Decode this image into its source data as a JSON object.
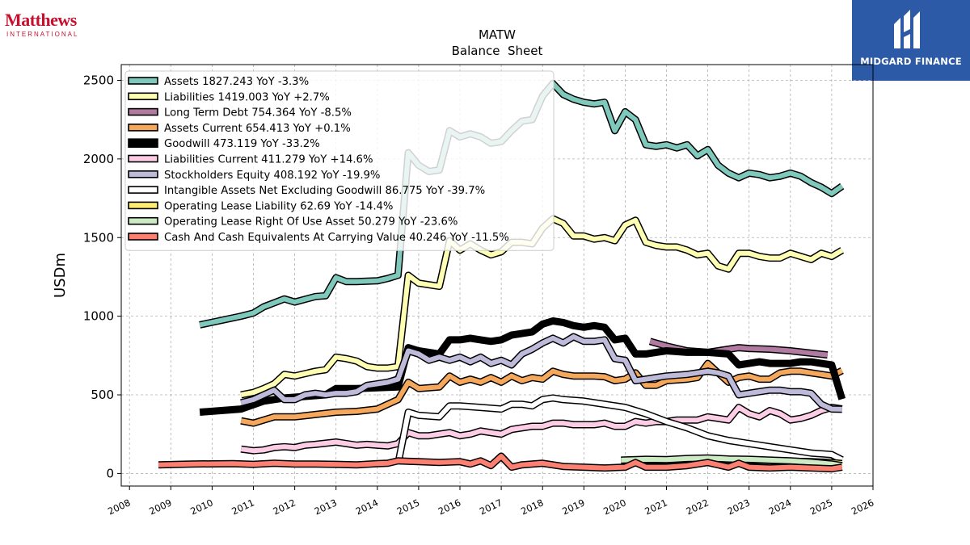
{
  "header": {
    "company_logo_text": "Matthews",
    "company_logo_subtext": "INTERNATIONAL",
    "publisher_logo_text": "MIDGARD FINANCE"
  },
  "chart_data": {
    "type": "line",
    "title": "MATW",
    "subtitle": "Balance  Sheet",
    "xlabel": "",
    "ylabel": "USDm",
    "xlim": [
      2007.8,
      2026.0
    ],
    "ylim": [
      -80,
      2600
    ],
    "x_ticks": [
      "2008",
      "2009",
      "2010",
      "2011",
      "2012",
      "2013",
      "2014",
      "2015",
      "2016",
      "2017",
      "2018",
      "2019",
      "2020",
      "2021",
      "2022",
      "2023",
      "2024",
      "2025",
      "2026"
    ],
    "y_ticks": [
      0,
      500,
      1000,
      1500,
      2000,
      2500
    ],
    "y_tick_labels": [
      "0",
      "500",
      "1000",
      "1500",
      "2000",
      "2500"
    ],
    "grid": true,
    "legend_position": "top-left",
    "series": [
      {
        "name": "Assets",
        "legend": "Assets  1827.243 YoY -3.3%",
        "color": "#7fc8bc",
        "width": 6,
        "x": [
          2009.7,
          2010.7,
          2011.0,
          2011.25,
          2011.75,
          2012.0,
          2012.5,
          2012.75,
          2013.0,
          2013.25,
          2013.5,
          2014.0,
          2014.25,
          2014.5,
          2014.75,
          2015.0,
          2015.25,
          2015.5,
          2015.75,
          2016.0,
          2016.25,
          2016.5,
          2016.75,
          2017.0,
          2017.25,
          2017.5,
          2017.75,
          2018.0,
          2018.25,
          2018.5,
          2018.75,
          2019.0,
          2019.25,
          2019.5,
          2019.75,
          2020.0,
          2020.25,
          2020.5,
          2020.75,
          2021.0,
          2021.25,
          2021.5,
          2021.75,
          2022.0,
          2022.25,
          2022.5,
          2022.75,
          2023.0,
          2023.25,
          2023.5,
          2023.75,
          2024.0,
          2024.25,
          2024.5,
          2024.75,
          2025.0,
          2025.25
        ],
        "y": [
          945,
          1000,
          1020,
          1060,
          1110,
          1090,
          1125,
          1130,
          1245,
          1220,
          1220,
          1225,
          1240,
          1260,
          2040,
          1960,
          1920,
          1930,
          2180,
          2140,
          2160,
          2140,
          2100,
          2110,
          2180,
          2240,
          2250,
          2400,
          2480,
          2410,
          2380,
          2360,
          2350,
          2360,
          2180,
          2300,
          2250,
          2090,
          2080,
          2090,
          2070,
          2090,
          2020,
          2060,
          1960,
          1910,
          1880,
          1910,
          1900,
          1880,
          1890,
          1910,
          1890,
          1850,
          1820,
          1780,
          1827
        ]
      },
      {
        "name": "Liabilities",
        "legend": "Liabilities  1419.003 YoY +2.7%",
        "color": "#ffffb3",
        "width": 6,
        "x": [
          2010.7,
          2011.0,
          2011.25,
          2011.5,
          2011.75,
          2012.0,
          2012.5,
          2012.75,
          2013.0,
          2013.25,
          2013.5,
          2013.75,
          2014.0,
          2014.25,
          2014.5,
          2014.75,
          2015.0,
          2015.25,
          2015.5,
          2015.75,
          2016.0,
          2016.25,
          2016.5,
          2016.75,
          2017.0,
          2017.25,
          2017.5,
          2017.75,
          2018.0,
          2018.25,
          2018.5,
          2018.75,
          2019.0,
          2019.25,
          2019.5,
          2019.75,
          2020.0,
          2020.25,
          2020.5,
          2020.75,
          2021.0,
          2021.25,
          2021.5,
          2021.75,
          2022.0,
          2022.25,
          2022.5,
          2022.75,
          2023.0,
          2023.25,
          2023.5,
          2023.75,
          2024.0,
          2024.25,
          2024.5,
          2024.75,
          2025.0,
          2025.25
        ],
        "y": [
          500,
          515,
          540,
          570,
          630,
          620,
          650,
          660,
          740,
          730,
          715,
          680,
          670,
          670,
          680,
          1260,
          1210,
          1200,
          1190,
          1480,
          1420,
          1460,
          1420,
          1390,
          1410,
          1470,
          1470,
          1460,
          1560,
          1620,
          1590,
          1510,
          1510,
          1490,
          1500,
          1480,
          1580,
          1610,
          1470,
          1450,
          1440,
          1440,
          1420,
          1390,
          1400,
          1320,
          1300,
          1400,
          1400,
          1380,
          1370,
          1370,
          1400,
          1380,
          1360,
          1400,
          1380,
          1419
        ]
      },
      {
        "name": "Long Term Debt",
        "legend": "Long Term Debt  754.364 YoY -8.5%",
        "color": "#b07aa1",
        "width": 6,
        "x": [
          2020.6,
          2021.0,
          2021.5,
          2022.0,
          2022.5,
          2022.75,
          2023.0,
          2023.5,
          2024.0,
          2024.5,
          2024.9
        ],
        "y": [
          840,
          810,
          780,
          770,
          790,
          800,
          795,
          790,
          780,
          765,
          754
        ]
      },
      {
        "name": "Assets Current",
        "legend": "Assets Current  654.413 YoY +0.1%",
        "color": "#f5a85b",
        "width": 6,
        "x": [
          2010.7,
          2011.0,
          2011.5,
          2012.0,
          2012.5,
          2013.0,
          2013.5,
          2014.0,
          2014.5,
          2014.75,
          2015.0,
          2015.5,
          2015.75,
          2016.0,
          2016.25,
          2016.5,
          2016.75,
          2017.0,
          2017.25,
          2017.5,
          2017.75,
          2018.0,
          2018.25,
          2018.5,
          2018.75,
          2019.0,
          2019.25,
          2019.5,
          2019.75,
          2020.0,
          2020.25,
          2020.5,
          2020.75,
          2021.0,
          2021.5,
          2021.75,
          2022.0,
          2022.25,
          2022.5,
          2022.75,
          2023.0,
          2023.25,
          2023.5,
          2023.75,
          2024.0,
          2024.25,
          2024.5,
          2024.75,
          2025.0,
          2025.25
        ],
        "y": [
          335,
          320,
          360,
          360,
          375,
          390,
          395,
          410,
          470,
          580,
          540,
          550,
          620,
          580,
          600,
          580,
          610,
          580,
          620,
          590,
          610,
          600,
          650,
          630,
          620,
          620,
          620,
          615,
          590,
          600,
          640,
          560,
          560,
          590,
          600,
          610,
          700,
          640,
          580,
          610,
          620,
          600,
          600,
          640,
          650,
          650,
          640,
          630,
          620,
          654
        ]
      },
      {
        "name": "Goodwill",
        "legend": "Goodwill  473.119 YoY -33.2%",
        "color": "#000000",
        "width": 9,
        "x": [
          2009.7,
          2010.7,
          2011.25,
          2011.75,
          2012.25,
          2012.75,
          2013.0,
          2013.5,
          2014.0,
          2014.5,
          2014.75,
          2015.0,
          2015.5,
          2015.75,
          2016.0,
          2016.25,
          2016.5,
          2016.75,
          2017.0,
          2017.25,
          2017.5,
          2017.75,
          2018.0,
          2018.25,
          2018.5,
          2018.75,
          2019.0,
          2019.25,
          2019.5,
          2019.75,
          2020.0,
          2020.25,
          2020.5,
          2020.75,
          2021.0,
          2021.5,
          2021.75,
          2022.0,
          2022.5,
          2022.75,
          2023.0,
          2023.25,
          2023.5,
          2023.75,
          2024.0,
          2024.25,
          2024.5,
          2024.75,
          2025.0,
          2025.25
        ],
        "y": [
          390,
          410,
          460,
          480,
          490,
          500,
          540,
          540,
          545,
          550,
          800,
          780,
          760,
          850,
          850,
          860,
          850,
          840,
          850,
          880,
          890,
          900,
          950,
          970,
          960,
          940,
          930,
          940,
          930,
          850,
          860,
          760,
          760,
          770,
          780,
          770,
          770,
          770,
          760,
          690,
          700,
          710,
          700,
          700,
          700,
          710,
          710,
          700,
          690,
          473
        ]
      },
      {
        "name": "Liabilities Current",
        "legend": "Liabilities Current  411.279 YoY +14.6%",
        "color": "#fccde5",
        "width": 6,
        "x": [
          2010.7,
          2011.0,
          2011.25,
          2011.5,
          2011.75,
          2012.0,
          2012.25,
          2012.5,
          2013.0,
          2013.25,
          2013.5,
          2013.75,
          2014.0,
          2014.25,
          2014.5,
          2014.75,
          2015.0,
          2015.25,
          2015.5,
          2015.75,
          2016.0,
          2016.25,
          2016.5,
          2016.75,
          2017.0,
          2017.25,
          2017.5,
          2017.75,
          2018.0,
          2018.25,
          2018.5,
          2018.75,
          2019.0,
          2019.25,
          2019.5,
          2019.75,
          2020.0,
          2020.25,
          2020.5,
          2020.75,
          2021.0,
          2021.25,
          2021.5,
          2021.75,
          2022.0,
          2022.25,
          2022.5,
          2022.75,
          2023.0,
          2023.25,
          2023.5,
          2023.75,
          2024.0,
          2024.25,
          2024.5,
          2024.75,
          2025.0,
          2025.25
        ],
        "y": [
          155,
          145,
          150,
          165,
          170,
          165,
          180,
          185,
          200,
          190,
          180,
          185,
          180,
          175,
          190,
          260,
          240,
          240,
          250,
          260,
          240,
          250,
          270,
          260,
          250,
          280,
          290,
          300,
          300,
          320,
          320,
          310,
          310,
          310,
          320,
          300,
          300,
          330,
          320,
          330,
          330,
          340,
          340,
          340,
          360,
          350,
          340,
          420,
          380,
          360,
          400,
          380,
          340,
          350,
          370,
          400,
          420,
          411
        ]
      },
      {
        "name": "Stockholders Equity",
        "legend": "Stockholders Equity  408.192 YoY -19.9%",
        "color": "#bebada",
        "width": 6,
        "x": [
          2010.7,
          2011.0,
          2011.25,
          2011.5,
          2011.75,
          2012.0,
          2012.25,
          2012.5,
          2012.75,
          2013.0,
          2013.25,
          2013.5,
          2013.75,
          2014.0,
          2014.25,
          2014.5,
          2014.75,
          2015.0,
          2015.25,
          2015.5,
          2015.75,
          2016.0,
          2016.25,
          2016.5,
          2016.75,
          2017.0,
          2017.25,
          2017.5,
          2017.75,
          2018.0,
          2018.25,
          2018.5,
          2018.75,
          2019.0,
          2019.25,
          2019.5,
          2019.75,
          2020.0,
          2020.25,
          2020.5,
          2020.75,
          2021.0,
          2021.5,
          2021.75,
          2022.0,
          2022.25,
          2022.5,
          2022.75,
          2023.0,
          2023.25,
          2023.5,
          2023.75,
          2024.0,
          2024.25,
          2024.5,
          2024.75,
          2025.0,
          2025.25
        ],
        "y": [
          450,
          470,
          500,
          530,
          470,
          470,
          500,
          510,
          500,
          510,
          510,
          520,
          560,
          570,
          580,
          600,
          780,
          760,
          720,
          740,
          720,
          740,
          710,
          740,
          700,
          720,
          690,
          760,
          790,
          830,
          860,
          830,
          870,
          840,
          840,
          850,
          730,
          720,
          590,
          600,
          610,
          620,
          630,
          640,
          650,
          640,
          620,
          500,
          510,
          520,
          530,
          530,
          520,
          520,
          510,
          440,
          410,
          408
        ]
      },
      {
        "name": "Intangible Assets Net Excluding Goodwill",
        "legend": "Intangible Assets Net Excluding Goodwill  86.775 YoY -39.7%",
        "color": "#ffffff",
        "width": 6,
        "x": [
          2014.5,
          2014.75,
          2015.0,
          2015.5,
          2015.75,
          2016.0,
          2016.5,
          2017.0,
          2017.25,
          2017.5,
          2017.75,
          2018.0,
          2018.25,
          2018.5,
          2019.0,
          2019.5,
          2020.0,
          2020.5,
          2021.0,
          2021.5,
          2022.0,
          2022.5,
          2023.0,
          2023.5,
          2024.0,
          2024.5,
          2025.0,
          2025.25
        ],
        "y": [
          60,
          390,
          370,
          360,
          430,
          430,
          420,
          410,
          440,
          440,
          430,
          470,
          480,
          470,
          460,
          440,
          420,
          380,
          330,
          290,
          240,
          210,
          190,
          170,
          150,
          130,
          120,
          87
        ]
      },
      {
        "name": "Operating Lease Liability",
        "legend": "Operating Lease Liability  62.69 YoY -14.4%",
        "color": "#ffed6f",
        "width": 6,
        "x": [
          2019.9,
          2020.5,
          2021.0,
          2021.5,
          2022.0,
          2022.5,
          2023.0,
          2023.5,
          2024.0,
          2024.5,
          2025.0,
          2025.25
        ],
        "y": [
          80,
          85,
          82,
          90,
          95,
          88,
          85,
          82,
          78,
          75,
          70,
          63
        ]
      },
      {
        "name": "Operating Lease Right Of Use Asset",
        "legend": "Operating Lease Right Of Use Asset  50.279 YoY -23.6%",
        "color": "#ccebc5",
        "width": 6,
        "x": [
          2019.9,
          2020.5,
          2021.0,
          2021.5,
          2022.0,
          2022.5,
          2023.0,
          2023.5,
          2024.0,
          2024.5,
          2025.0,
          2025.25
        ],
        "y": [
          85,
          90,
          88,
          95,
          98,
          92,
          90,
          85,
          80,
          72,
          60,
          50
        ]
      },
      {
        "name": "Cash And Cash Equivalents At Carrying Value",
        "legend": "Cash And Cash Equivalents At Carrying Value  40.246 YoY -11.5%",
        "color": "#fb8072",
        "width": 6,
        "x": [
          2008.7,
          2009.5,
          2010.5,
          2011.0,
          2011.5,
          2012.0,
          2012.5,
          2013.0,
          2013.5,
          2014.0,
          2014.25,
          2014.5,
          2015.0,
          2015.5,
          2016.0,
          2016.25,
          2016.5,
          2016.75,
          2017.0,
          2017.25,
          2017.5,
          2018.0,
          2018.5,
          2019.0,
          2019.5,
          2020.0,
          2020.25,
          2020.5,
          2021.0,
          2021.5,
          2022.0,
          2022.5,
          2022.75,
          2023.0,
          2023.5,
          2024.0,
          2024.5,
          2025.0,
          2025.25
        ],
        "y": [
          55,
          60,
          62,
          58,
          65,
          60,
          60,
          58,
          55,
          62,
          65,
          80,
          75,
          70,
          75,
          60,
          80,
          50,
          110,
          40,
          55,
          65,
          45,
          40,
          35,
          40,
          70,
          40,
          40,
          50,
          70,
          40,
          65,
          40,
          35,
          40,
          35,
          30,
          40
        ]
      }
    ]
  }
}
